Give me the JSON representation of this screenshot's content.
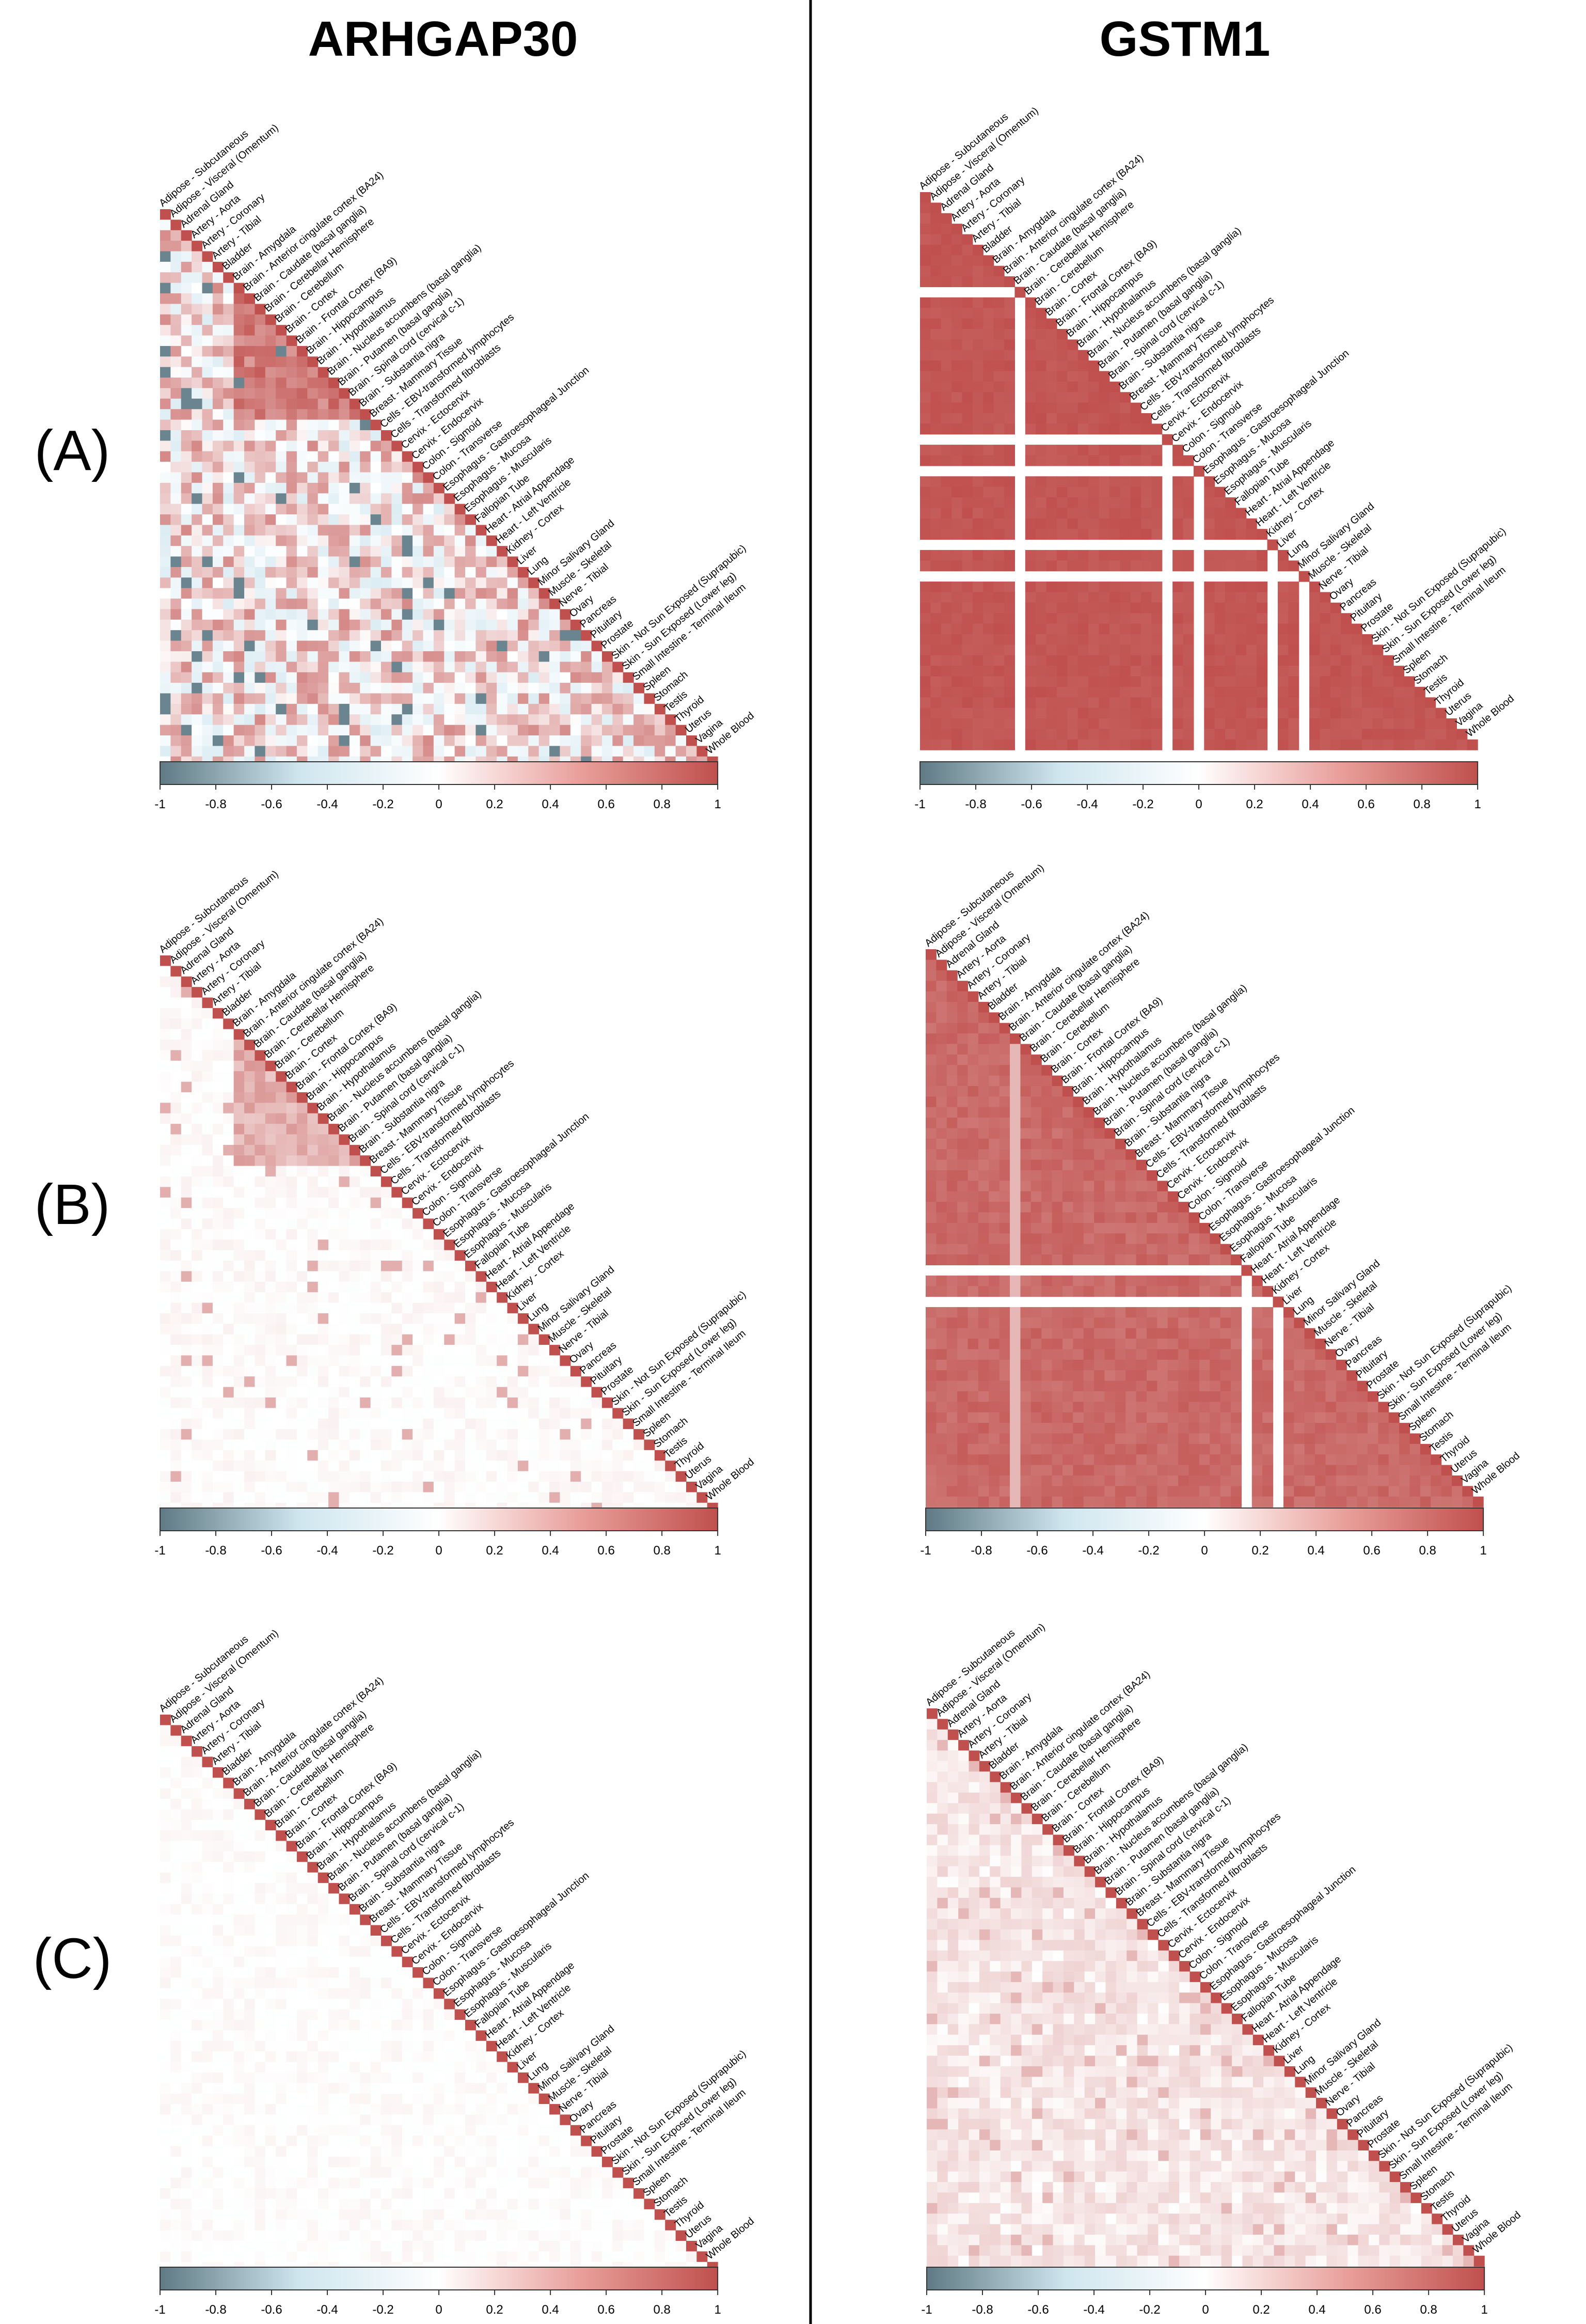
{
  "columns": [
    "ARHGAP30",
    "GSTM1"
  ],
  "row_labels": [
    "(A)",
    "(B)",
    "(C)"
  ],
  "tissues": [
    "Adipose - Subcutaneous",
    "Adipose - Visceral (Omentum)",
    "Adrenal Gland",
    "Artery - Aorta",
    "Artery - Coronary",
    "Artery - Tibial",
    "Bladder",
    "Brain - Amygdala",
    "Brain - Anterior cingulate cortex (BA24)",
    "Brain - Caudate (basal ganglia)",
    "Brain - Cerebellar Hemisphere",
    "Brain - Cerebellum",
    "Brain - Cortex",
    "Brain - Frontal Cortex (BA9)",
    "Brain - Hippocampus",
    "Brain - Hypothalamus",
    "Brain - Nucleus accumbens (basal ganglia)",
    "Brain - Putamen (basal ganglia)",
    "Brain - Spinal cord (cervical c-1)",
    "Brain - Substantia nigra",
    "Breast - Mammary Tissue",
    "Cells - EBV-transformed lymphocytes",
    "Cells - Transformed fibroblasts",
    "Cervix - Ectocervix",
    "Cervix - Endocervix",
    "Colon - Sigmoid",
    "Colon - Transverse",
    "Esophagus - Gastroesophageal Junction",
    "Esophagus - Mucosa",
    "Esophagus - Muscularis",
    "Fallopian Tube",
    "Heart - Atrial Appendage",
    "Heart - Left Ventricle",
    "Kidney - Cortex",
    "Liver",
    "Lung",
    "Minor Salivary Gland",
    "Muscle - Skeletal",
    "Nerve - Tibial",
    "Ovary",
    "Pancreas",
    "Pituitary",
    "Prostate",
    "Skin - Not Sun Exposed (Suprapubic)",
    "Skin - Sun Exposed (Lower leg)",
    "Small Intestine - Terminal Ileum",
    "Spleen",
    "Stomach",
    "Testis",
    "Thyroid",
    "Uterus",
    "Vagina",
    "Whole Blood"
  ],
  "colorscale": {
    "ticks": [
      "-1",
      "-0.8",
      "-0.6",
      "-0.4",
      "-0.2",
      "0",
      "0.2",
      "0.4",
      "0.6",
      "0.8",
      "1"
    ],
    "negative_color": "#5f7a84",
    "light_negative_color": "#cfe6ef",
    "neutral_color": "#ffffff",
    "positive_color": "#c0504d"
  },
  "chart_data": [
    {
      "type": "heatmap",
      "panel": "(A)",
      "gene": "ARHGAP30",
      "range": [
        -1,
        1
      ],
      "pattern": "mixed correlations with clustered positive brain block",
      "colorbar_ticks": [
        "-1",
        "-0.8",
        "-0.6",
        "-0.4",
        "-0.2",
        "0",
        "0.2",
        "0.4",
        "0.6",
        "0.8",
        "1"
      ]
    },
    {
      "type": "heatmap",
      "panel": "(A)",
      "gene": "GSTM1",
      "range": [
        -1,
        1
      ],
      "pattern": "nearly all correlations near 1 with blank tissues",
      "colorbar_ticks": [
        "-1",
        "-0.8",
        "-0.6",
        "-0.4",
        "-0.2",
        "0",
        "0.2",
        "0.4",
        "0.6",
        "0.8",
        "1"
      ]
    },
    {
      "type": "heatmap",
      "panel": "(B)",
      "gene": "ARHGAP30",
      "range": [
        -1,
        1
      ],
      "pattern": "mostly near zero with positive brain block",
      "colorbar_ticks": [
        "-1",
        "-0.8",
        "-0.6",
        "-0.4",
        "-0.2",
        "0",
        "0.2",
        "0.4",
        "0.6",
        "0.8",
        "1"
      ]
    },
    {
      "type": "heatmap",
      "panel": "(B)",
      "gene": "GSTM1",
      "range": [
        -1,
        1
      ],
      "pattern": "strong positive correlations across tissues",
      "colorbar_ticks": [
        "-1",
        "-0.8",
        "-0.6",
        "-0.4",
        "-0.2",
        "0",
        "0.2",
        "0.4",
        "0.6",
        "0.8",
        "1"
      ]
    },
    {
      "type": "heatmap",
      "panel": "(C)",
      "gene": "ARHGAP30",
      "range": [
        -1,
        1
      ],
      "pattern": "near zero off-diagonal",
      "colorbar_ticks": [
        "-1",
        "-0.8",
        "-0.6",
        "-0.4",
        "-0.2",
        "0",
        "0.2",
        "0.4",
        "0.6",
        "0.8",
        "1"
      ]
    },
    {
      "type": "heatmap",
      "panel": "(C)",
      "gene": "GSTM1",
      "range": [
        -1,
        1
      ],
      "pattern": "weak positive off-diagonal",
      "colorbar_ticks": [
        "-1",
        "-0.8",
        "-0.6",
        "-0.4",
        "-0.2",
        "0",
        "0.2",
        "0.4",
        "0.6",
        "0.8",
        "1"
      ]
    }
  ]
}
